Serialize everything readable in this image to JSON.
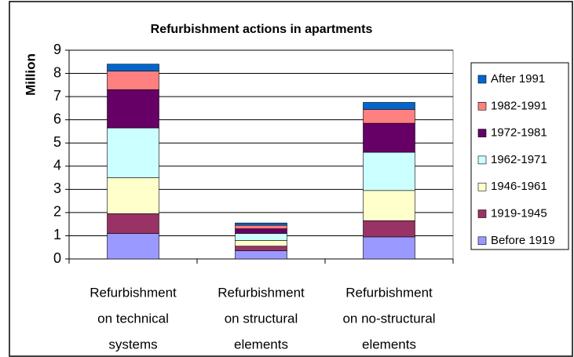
{
  "chart_data": {
    "type": "stacked_bar",
    "title": "Refurbishment actions in apartments",
    "y_label": "Million",
    "categories": [
      [
        "Refurbishment",
        "on technical",
        "systems"
      ],
      [
        "Refurbishment",
        "on structural",
        "elements"
      ],
      [
        "Refurbishment",
        "on no-structural",
        "elements"
      ]
    ],
    "series": [
      {
        "name": "Before 1919",
        "color": "#9999ff",
        "values": [
          1.1,
          0.35,
          0.95
        ]
      },
      {
        "name": "1919-1945",
        "color": "#993366",
        "values": [
          0.85,
          0.2,
          0.7
        ]
      },
      {
        "name": "1946-1961",
        "color": "#ffffcc",
        "values": [
          1.55,
          0.25,
          1.3
        ]
      },
      {
        "name": "1962-1971",
        "color": "#ccffff",
        "values": [
          2.15,
          0.3,
          1.65
        ]
      },
      {
        "name": "1972-1981",
        "color": "#660066",
        "values": [
          1.65,
          0.2,
          1.25
        ]
      },
      {
        "name": "1982-1991",
        "color": "#ff8080",
        "values": [
          0.8,
          0.15,
          0.6
        ]
      },
      {
        "name": "After 1991",
        "color": "#0066cc",
        "values": [
          0.3,
          0.1,
          0.3
        ]
      }
    ],
    "ylim": [
      0,
      9
    ],
    "yticks": [
      0,
      1,
      2,
      3,
      4,
      5,
      6,
      7,
      8,
      9
    ],
    "grid": true,
    "legend": "right"
  }
}
